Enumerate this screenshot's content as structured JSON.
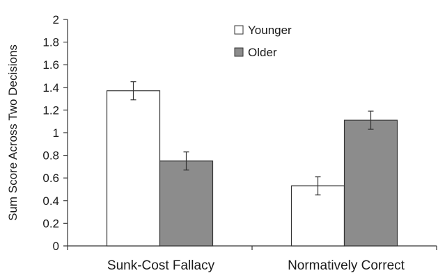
{
  "chart_data": {
    "type": "bar",
    "title": "",
    "xlabel": "",
    "ylabel": "Sum Score Across Two Decisions",
    "ylim": [
      0,
      2
    ],
    "yticks": [
      "0",
      "0.2",
      "0.4",
      "0.6",
      "0.8",
      "1",
      "1.2",
      "1.4",
      "1.6",
      "1.8",
      "2"
    ],
    "categories": [
      "Sunk-Cost Fallacy",
      "Normatively Correct"
    ],
    "series": [
      {
        "name": "Younger",
        "values": [
          1.37,
          0.53
        ],
        "error": [
          0.08,
          0.08
        ],
        "color": "#ffffff"
      },
      {
        "name": "Older",
        "values": [
          0.75,
          1.11
        ],
        "error": [
          0.08,
          0.08
        ],
        "color": "#8c8c8c"
      }
    ],
    "legend_position": "top-right",
    "grid": false
  }
}
